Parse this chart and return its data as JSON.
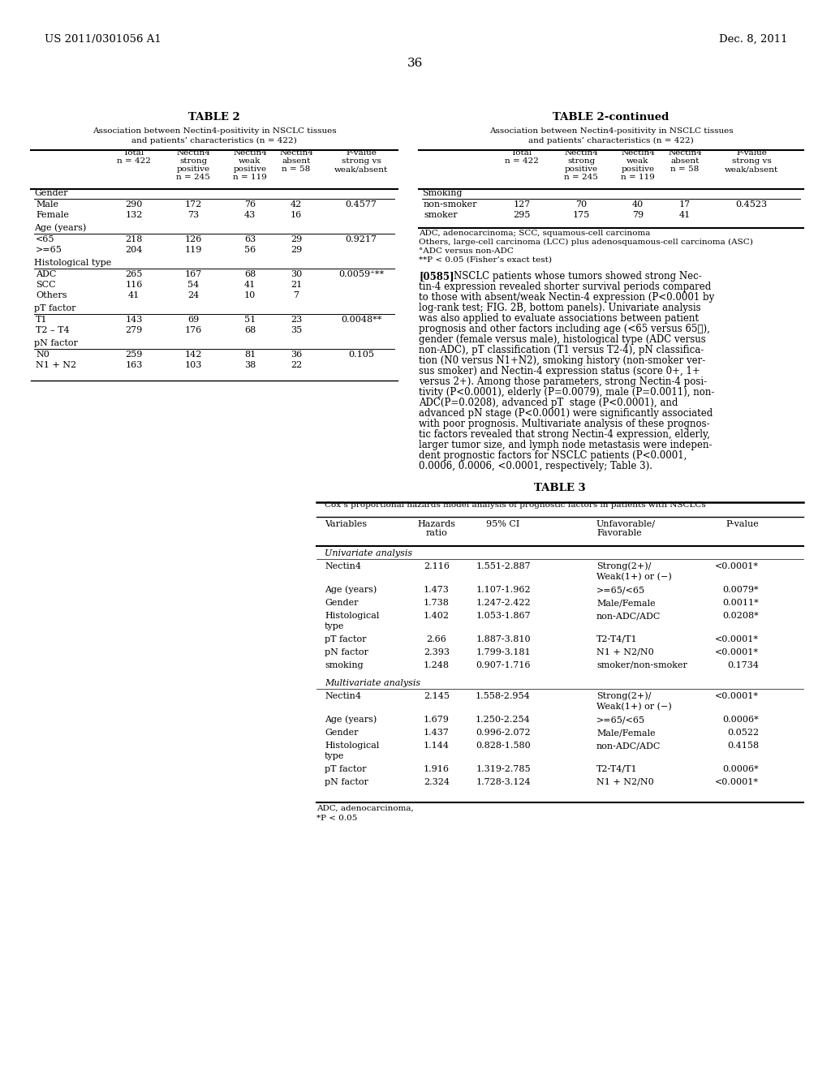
{
  "header_left": "US 2011/0301056 A1",
  "header_right": "Dec. 8, 2011",
  "page_num": "36",
  "table2_title": "TABLE 2",
  "table2_subtitle1": "Association between Nectin4-positivity in NSCLC tissues",
  "table2_subtitle2": "and patients’ characteristics (n = 422)",
  "table2cont_title": "TABLE 2-continued",
  "table2cont_subtitle1": "Association between Nectin4-positivity in NSCLC tissues",
  "table2cont_subtitle2": "and patients’ characteristics (n = 422)",
  "col_header_texts": [
    "",
    "Total\nn = 422",
    "Nectin4\nstrong\npositive\nn = 245",
    "Nectin4\nweak\npositive\nn = 119",
    "Nectin4\nabsent\nn = 58",
    "P-value\nstrong vs\nweak/absent"
  ],
  "table2_sections": [
    {
      "section": "Gender",
      "rows": [
        [
          "Male",
          "290",
          "172",
          "76",
          "42",
          "0.4577"
        ],
        [
          "Female",
          "132",
          "73",
          "43",
          "16",
          ""
        ]
      ]
    },
    {
      "section": "Age (years)",
      "rows": [
        [
          "<65",
          "218",
          "126",
          "63",
          "29",
          "0.9217"
        ],
        [
          ">=65",
          "204",
          "119",
          "56",
          "29",
          ""
        ]
      ]
    },
    {
      "section": "Histological type",
      "rows": [
        [
          "ADC",
          "265",
          "167",
          "68",
          "30",
          "0.0059⁺**"
        ],
        [
          "SCC",
          "116",
          "54",
          "41",
          "21",
          ""
        ],
        [
          "Others",
          "41",
          "24",
          "10",
          "7",
          ""
        ]
      ]
    },
    {
      "section": "pT factor",
      "rows": [
        [
          "T1",
          "143",
          "69",
          "51",
          "23",
          "0.0048**"
        ],
        [
          "T2 – T4",
          "279",
          "176",
          "68",
          "35",
          ""
        ]
      ]
    },
    {
      "section": "pN factor",
      "rows": [
        [
          "N0",
          "259",
          "142",
          "81",
          "36",
          "0.105"
        ],
        [
          "N1 + N2",
          "163",
          "103",
          "38",
          "22",
          ""
        ]
      ]
    }
  ],
  "table2cont_sections": [
    {
      "section": "Smoking",
      "rows": [
        [
          "non-smoker",
          "127",
          "70",
          "40",
          "17",
          "0.4523"
        ],
        [
          "smoker",
          "295",
          "175",
          "79",
          "41",
          ""
        ]
      ]
    }
  ],
  "table2_footnotes": [
    "ADC, adenocarcinoma; SCC, squamous-cell carcinoma",
    "Others, large-cell carcinoma (LCC) plus adenosquamous-cell carcinoma (ASC)",
    "°ADC versus non-ADC",
    "**P < 0.05 (Fisher’s exact test)"
  ],
  "paragraph_num": "[0585]",
  "para_lines": [
    "NSCLC patients whose tumors showed strong Nec-",
    "tin-4 expression revealed shorter survival periods compared",
    "to those with absent/weak Nectin-4 expression (P<0.0001 by",
    "log-rank test; FIG. 2B, bottom panels). Univariate analysis",
    "was also applied to evaluate associations between patient",
    "prognosis and other factors including age (<65 versus 65≧),",
    "gender (female versus male), histological type (ADC versus",
    "non-ADC), pT classification (T1 versus T2-4), pN classifica-",
    "tion (N0 versus N1+N2), smoking history (non-smoker ver-",
    "sus smoker) and Nectin-4 expression status (score 0+, 1+",
    "versus 2+). Among those parameters, strong Nectin-4 posi-",
    "tivity (P<0.0001), elderly (P=0.0079), male (P=0.0011), non-",
    "ADC(P=0.0208), advanced pT  stage (P<0.0001), and",
    "advanced pN stage (P<0.0001) were significantly associated",
    "with poor prognosis. Multivariate analysis of these prognos-",
    "tic factors revealed that strong Nectin-4 expression, elderly,",
    "larger tumor size, and lymph node metastasis were indepen-",
    "dent prognostic factors for NSCLC patients (P<0.0001,",
    "0.0006, 0.0006, <0.0001, respectively; Table 3)."
  ],
  "table3_title": "TABLE 3",
  "table3_subtitle": "Cox’s proportional hazards model analysis of prognostic factors in patients with NSCLCs",
  "table3_col_headers": [
    "Variables",
    "Hazards\nratio",
    "95% CI",
    "Unfavorable/\nFavorable",
    "P-value"
  ],
  "table3_sections": [
    {
      "section": "Univariate analysis",
      "rows": [
        [
          "Nectin4",
          "2.116",
          "1.551-2.887",
          "Strong(2+)/\nWeak(1+) or (−)",
          "<0.0001*"
        ],
        [
          "Age (years)",
          "1.473",
          "1.107-1.962",
          ">=65/<65",
          "0.0079*"
        ],
        [
          "Gender",
          "1.738",
          "1.247-2.422",
          "Male/Female",
          "0.0011*"
        ],
        [
          "Histological\ntype",
          "1.402",
          "1.053-1.867",
          "non-ADC/ADC",
          "0.0208*"
        ],
        [
          "pT factor",
          "2.66",
          "1.887-3.810",
          "T2-T4/T1",
          "<0.0001*"
        ],
        [
          "pN factor",
          "2.393",
          "1.799-3.181",
          "N1 + N2/N0",
          "<0.0001*"
        ],
        [
          "smoking",
          "1.248",
          "0.907-1.716",
          "smoker/non-smoker",
          "0.1734"
        ]
      ]
    },
    {
      "section": "Multivariate analysis",
      "rows": [
        [
          "Nectin4",
          "2.145",
          "1.558-2.954",
          "Strong(2+)/\nWeak(1+) or (−)",
          "<0.0001*"
        ],
        [
          "Age (years)",
          "1.679",
          "1.250-2.254",
          ">=65/<65",
          "0.0006*"
        ],
        [
          "Gender",
          "1.437",
          "0.996-2.072",
          "Male/Female",
          "0.0522"
        ],
        [
          "Histological\ntype",
          "1.144",
          "0.828-1.580",
          "non-ADC/ADC",
          "0.4158"
        ],
        [
          "pT factor",
          "1.916",
          "1.319-2.785",
          "T2-T4/T1",
          "0.0006*"
        ],
        [
          "pN factor",
          "2.324",
          "1.728-3.124",
          "N1 + N2/N0",
          "<0.0001*"
        ]
      ]
    }
  ],
  "table3_footnotes": [
    "ADC, adenocarcinoma,",
    "*P < 0.05"
  ],
  "bg_color": "#ffffff",
  "text_color": "#000000"
}
